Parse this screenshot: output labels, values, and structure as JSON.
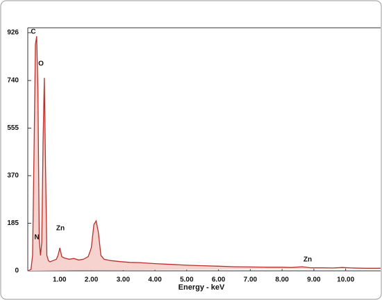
{
  "chart_data": {
    "type": "line",
    "x_label": "Energy - keV",
    "x": [
      0.0,
      0.1,
      0.15,
      0.2,
      0.24,
      0.28,
      0.32,
      0.36,
      0.4,
      0.44,
      0.48,
      0.52,
      0.56,
      0.6,
      0.65,
      0.7,
      0.8,
      0.9,
      0.95,
      1.01,
      1.07,
      1.15,
      1.3,
      1.45,
      1.6,
      1.75,
      1.9,
      2.0,
      2.08,
      2.15,
      2.22,
      2.3,
      2.4,
      2.6,
      2.9,
      3.2,
      3.5,
      4.0,
      4.5,
      5.0,
      5.5,
      6.0,
      6.5,
      7.0,
      7.5,
      8.0,
      8.3,
      8.63,
      8.9,
      9.3,
      9.6,
      9.9,
      10.2,
      10.6,
      11.1
    ],
    "values": [
      0,
      5,
      60,
      500,
      880,
      912,
      700,
      120,
      60,
      110,
      500,
      750,
      400,
      60,
      40,
      35,
      40,
      45,
      60,
      89,
      55,
      50,
      45,
      48,
      42,
      45,
      55,
      90,
      180,
      194,
      150,
      60,
      45,
      40,
      36,
      33,
      32,
      28,
      25,
      22,
      20,
      18,
      16,
      15,
      14,
      14,
      13,
      16,
      12,
      12,
      11,
      13,
      11,
      10,
      10
    ],
    "color": "#b5302a",
    "xlim": [
      0,
      11.1
    ],
    "ylim": [
      0,
      945
    ],
    "xticks": [
      {
        "value": 1,
        "label": "1.00"
      },
      {
        "value": 2,
        "label": "2.00"
      },
      {
        "value": 3,
        "label": "3.00"
      },
      {
        "value": 4,
        "label": "4.00"
      },
      {
        "value": 5,
        "label": "5.00"
      },
      {
        "value": 6,
        "label": "6.00"
      },
      {
        "value": 7,
        "label": "7.00"
      },
      {
        "value": 8,
        "label": "8.00"
      },
      {
        "value": 9,
        "label": "9.00"
      },
      {
        "value": 10,
        "label": "10.00"
      }
    ],
    "yticks": [
      0,
      185,
      370,
      555,
      740,
      926
    ],
    "annotations": [
      "C",
      "O",
      "N",
      "Zn",
      "Zn"
    ]
  }
}
